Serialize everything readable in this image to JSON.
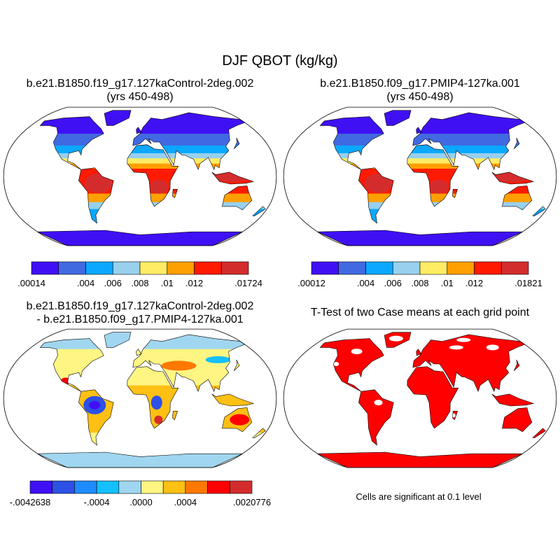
{
  "main_title": "DJF QBOT (kg/kg)",
  "panels": [
    {
      "title_line1": "b.e21.B1850.f19_g17.127kaControl-2deg.002",
      "title_line2": "(yrs 450-498)",
      "style": "mean"
    },
    {
      "title_line1": "b.e21.B1850.f09_g17.PMIP4-127ka.001",
      "title_line2": "(yrs 450-498)",
      "style": "mean"
    },
    {
      "title_line1": "b.e21.B1850.f19_g17.127kaControl-2deg.002",
      "title_line2": "- b.e21.B1850.f09_g17.PMIP4-127ka.001",
      "style": "diff"
    },
    {
      "title_line1": "T-Test of two Case means at each grid point",
      "title_line2": "",
      "style": "ttest"
    }
  ],
  "colorbars": [
    {
      "colors": [
        "#4010f5",
        "#4169e1",
        "#0aa8ff",
        "#98d0ee",
        "#ffec64",
        "#ff9f00",
        "#ff1a00",
        "#d42c2c"
      ],
      "labels": [
        {
          "text": ".00014",
          "at": 0
        },
        {
          "text": ".004",
          "at": 2
        },
        {
          "text": ".006",
          "at": 3
        },
        {
          "text": ".008",
          "at": 4
        },
        {
          "text": ".01",
          "at": 5
        },
        {
          "text": ".012",
          "at": 6
        },
        {
          "text": ".01724",
          "at": 8
        }
      ]
    },
    {
      "colors": [
        "#4010f5",
        "#4169e1",
        "#0aa8ff",
        "#98d0ee",
        "#ffec64",
        "#ff9f00",
        "#ff1a00",
        "#d42c2c"
      ],
      "labels": [
        {
          "text": ".00012",
          "at": 0
        },
        {
          "text": ".004",
          "at": 2
        },
        {
          "text": ".006",
          "at": 3
        },
        {
          "text": ".008",
          "at": 4
        },
        {
          "text": ".01",
          "at": 5
        },
        {
          "text": ".012",
          "at": 6
        },
        {
          "text": ".01821",
          "at": 8
        }
      ]
    },
    {
      "colors": [
        "#4010f5",
        "#2d50e6",
        "#1e8cff",
        "#14c0ff",
        "#a0d6f0",
        "#fff582",
        "#ffc014",
        "#ff7800",
        "#ff0000",
        "#d42c2c"
      ],
      "labels": [
        {
          "text": "-.0042638",
          "at": 0
        },
        {
          "text": "-.0004",
          "at": 3
        },
        {
          "text": ".0000",
          "at": 5
        },
        {
          "text": ".0004",
          "at": 7
        },
        {
          "text": ".0020776",
          "at": 10
        }
      ]
    }
  ],
  "ttest_note": "Cells are significant at 0.1 level",
  "significance_color": "#ff0000"
}
